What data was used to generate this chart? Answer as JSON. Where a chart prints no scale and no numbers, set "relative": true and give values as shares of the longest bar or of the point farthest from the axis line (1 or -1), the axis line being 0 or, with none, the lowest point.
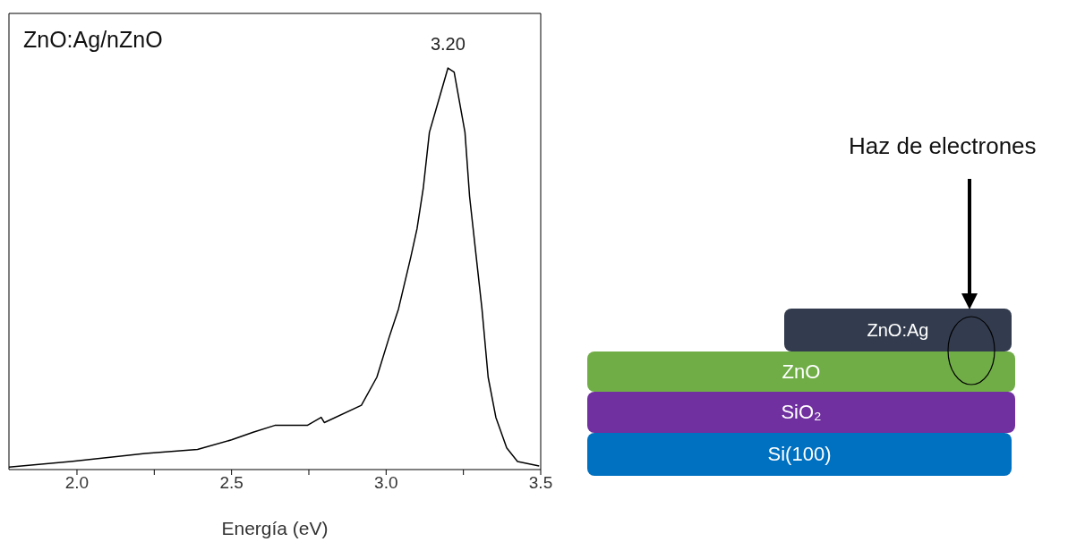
{
  "chart_data": {
    "type": "line",
    "title": "ZnO:Ag/nZnO",
    "xlabel": "Energía (eV)",
    "relative": true,
    "color": "#000000",
    "x": [
      1.78,
      1.98,
      2.22,
      2.39,
      2.5,
      2.57,
      2.64,
      2.745,
      2.79,
      2.8,
      2.92,
      2.97,
      3.01,
      3.04,
      3.08,
      3.1,
      3.12,
      3.14,
      3.17,
      3.2,
      3.22,
      3.255,
      3.27,
      3.29,
      3.31,
      3.33,
      3.355,
      3.39,
      3.425,
      3.495
    ],
    "values": [
      0.006,
      0.02,
      0.04,
      0.05,
      0.074,
      0.093,
      0.11,
      0.11,
      0.13,
      0.117,
      0.16,
      0.23,
      0.33,
      0.4,
      0.53,
      0.6,
      0.7,
      0.84,
      0.92,
      1.0,
      0.99,
      0.84,
      0.68,
      0.54,
      0.4,
      0.23,
      0.13,
      0.054,
      0.02,
      0.009
    ],
    "xlim": [
      1.78,
      3.5
    ],
    "xticks": [
      {
        "value": 2.0,
        "label": "2.0"
      },
      {
        "value": 2.25,
        "label": null
      },
      {
        "value": 2.5,
        "label": "2.5"
      },
      {
        "value": 2.75,
        "label": null
      },
      {
        "value": 3.0,
        "label": "3.0"
      },
      {
        "value": 3.25,
        "label": null
      },
      {
        "value": 3.5,
        "label": "3.5"
      }
    ],
    "annotations": [
      {
        "text": "3.20",
        "x": 3.2,
        "y": 1.0
      },
      "Haz de electrones",
      "ZnO:Ag",
      "ZnO",
      "SiO₂",
      "Si(100)"
    ],
    "marker": "none",
    "line_style": "solid"
  }
}
